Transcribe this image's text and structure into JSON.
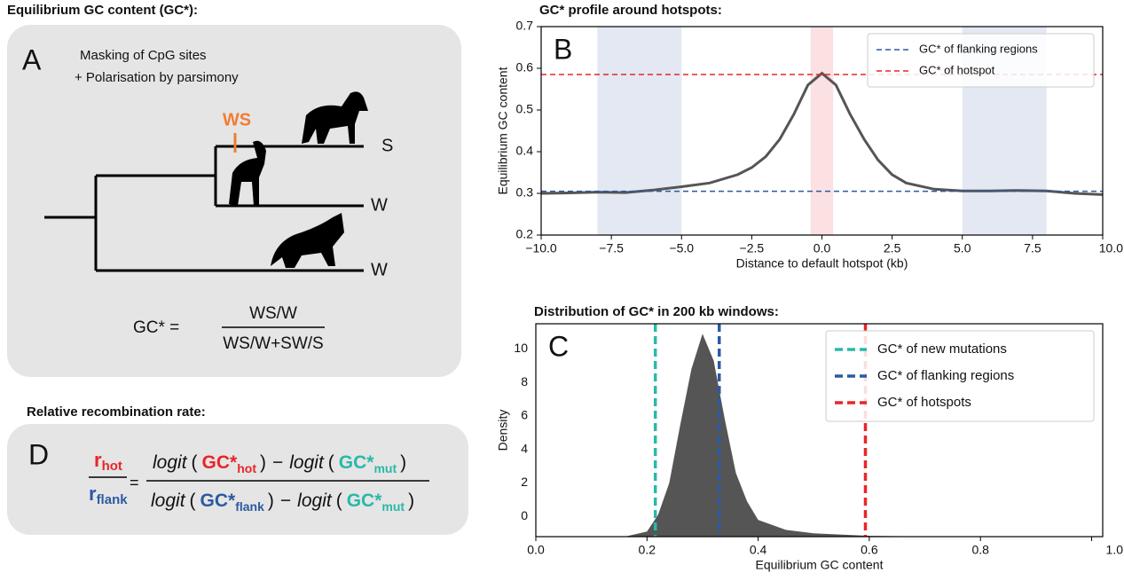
{
  "panel_a": {
    "heading": "Equilibrium GC content (GC*):",
    "letter": "A",
    "notes": [
      "Masking of CpG sites",
      "+ Polarisation by parsimony"
    ],
    "branch_event": "WS",
    "leaves": [
      "S",
      "W",
      "W"
    ],
    "formula": {
      "lhs": "GC* =",
      "numerator": "WS/W",
      "denominator": "WS/W+SW/S"
    }
  },
  "panel_d": {
    "heading": "Relative recombination rate:",
    "letter": "D",
    "r": "r",
    "hot": "hot",
    "flank": "flank",
    "mut": "mut",
    "gc": "GC*",
    "logit": "logit",
    "open": "(",
    "close": ")",
    "eq": "=",
    "minus": "−"
  },
  "chart_data": [
    {
      "type": "line",
      "title": "GC* profile around hotspots:",
      "letter": "B",
      "xlabel": "Distance to default hotspot (kb)",
      "ylabel": "Equilibrium GC content",
      "xlim": [
        -10,
        10
      ],
      "ylim": [
        0.2,
        0.7
      ],
      "xticks": [
        {
          "value": -10,
          "label": "−10.0"
        },
        {
          "value": -7.5,
          "label": "−7.5"
        },
        {
          "value": -5,
          "label": "−5.0"
        },
        {
          "value": -2.5,
          "label": "−2.5"
        },
        {
          "value": 0,
          "label": "0.0"
        },
        2.5,
        {
          "value": 5,
          "label": "5.0"
        },
        7.5,
        {
          "value": 10,
          "label": "10.0"
        }
      ],
      "yticks": [
        0.2,
        0.3,
        0.4,
        0.5,
        0.6,
        0.7
      ],
      "x": [
        -10,
        -9,
        -8,
        -7,
        -6,
        -5,
        -4,
        -3,
        -2.5,
        -2,
        -1.5,
        -1,
        -0.5,
        0,
        0.5,
        1,
        1.5,
        2,
        2.5,
        3,
        4,
        5,
        6,
        7,
        8,
        9,
        10
      ],
      "series": [
        {
          "color": "#555555",
          "values": [
            0.3,
            0.301,
            0.303,
            0.302,
            0.308,
            0.316,
            0.325,
            0.345,
            0.362,
            0.388,
            0.43,
            0.49,
            0.56,
            0.588,
            0.56,
            0.49,
            0.43,
            0.38,
            0.345,
            0.325,
            0.31,
            0.306,
            0.306,
            0.307,
            0.306,
            0.3,
            0.297
          ]
        }
      ],
      "bands": [
        {
          "range": [
            -8,
            -5
          ],
          "color": "#e3e8f3"
        },
        {
          "range": [
            -0.4,
            0.4
          ],
          "color": "#fbe1e1"
        },
        {
          "range": [
            5,
            8
          ],
          "color": "#e3e8f3"
        }
      ],
      "reference_lines": [
        {
          "name": "GC* of flanking regions",
          "color": "#2c5aa0",
          "value": 0.305,
          "orientation": "horizontal"
        },
        {
          "name": "GC* of hotspot",
          "color": "#e8262a",
          "value": 0.585,
          "orientation": "horizontal"
        }
      ],
      "legend": "upper right"
    },
    {
      "type": "area",
      "title": "Distribution of GC* in 200 kb windows:",
      "letter": "C",
      "xlabel": "Equilibrium GC content",
      "ylabel": "Density",
      "xlim": [
        0,
        1.02
      ],
      "ylim": [
        -1.2,
        11.5
      ],
      "xticks": [
        {
          "value": 0,
          "label": "0.0"
        },
        0.2,
        0.4,
        0.6,
        0.8,
        {
          "value": 1,
          "label": "1.0"
        }
      ],
      "yticks": [
        0,
        2,
        4,
        6,
        8,
        10
      ],
      "x": [
        0.16,
        0.2,
        0.22,
        0.24,
        0.26,
        0.28,
        0.3,
        0.32,
        0.34,
        0.36,
        0.38,
        0.4,
        0.45,
        0.5,
        0.6,
        0.73
      ],
      "series": [
        {
          "color": "#555555",
          "values": [
            -1.2,
            -0.9,
            0.1,
            2,
            5.5,
            8.8,
            10.9,
            9.3,
            5.8,
            2.6,
            0.9,
            -0.2,
            -0.8,
            -1.0,
            -1.15,
            -1.2
          ]
        }
      ],
      "reference_lines": [
        {
          "name": "GC* of new mutations",
          "color": "#2bb8a8",
          "value": 0.215,
          "orientation": "vertical"
        },
        {
          "name": "GC* of flanking regions",
          "color": "#2c5aa0",
          "value": 0.33,
          "orientation": "vertical"
        },
        {
          "name": "GC* of hotspots",
          "color": "#e8262a",
          "value": 0.593,
          "orientation": "vertical"
        }
      ],
      "legend": "upper right"
    }
  ]
}
